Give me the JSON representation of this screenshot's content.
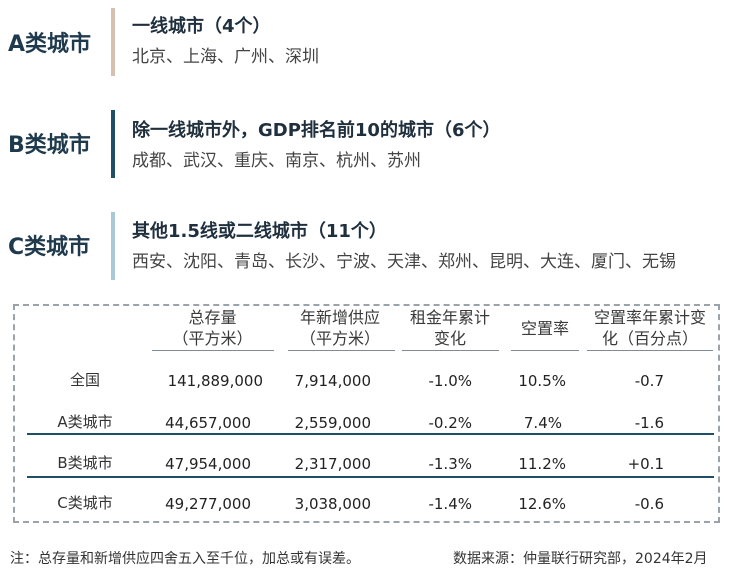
{
  "categories": [
    {
      "label": "A类城市",
      "title": "一线城市（4个）",
      "cities": "北京、上海、广州、深圳",
      "bar_color": "#d8c0b0"
    },
    {
      "label": "B类城市",
      "title": "除一线城市外，GDP排名前10的城市（6个）",
      "cities": "成都、武汉、重庆、南京、杭州、苏州",
      "bar_color": "#1f4e67"
    },
    {
      "label": "C类城市",
      "title": "其他1.5线或二线城市（11个）",
      "cities": "西安、沈阳、青岛、长沙、宁波、天津、郑州、昆明、大连、厦门、无锡",
      "bar_color": "#a9c9d6"
    }
  ],
  "table": {
    "headers": {
      "stock": [
        "总存量",
        "（平方米）"
      ],
      "supply": [
        "年新增供应",
        "（平方米）"
      ],
      "rent": [
        "租金年累计",
        "变化"
      ],
      "vacancy": [
        "空置率"
      ],
      "vacancy_change": [
        "空置率年累计变",
        "化（百分点）"
      ]
    },
    "rows": [
      {
        "label": "全国",
        "stock": "141,889,000",
        "supply": "7,914,000",
        "rent": "-1.0%",
        "vacancy": "10.5%",
        "vacancy_change": "-0.7"
      },
      {
        "label": "A类城市",
        "stock": "44,657,000",
        "supply": "2,559,000",
        "rent": "-0.2%",
        "vacancy": "7.4%",
        "vacancy_change": "-1.6"
      },
      {
        "label": "B类城市",
        "stock": "47,954,000",
        "supply": "2,317,000",
        "rent": "-1.3%",
        "vacancy": "11.2%",
        "vacancy_change": "+0.1"
      },
      {
        "label": "C类城市",
        "stock": "49,277,000",
        "supply": "3,038,000",
        "rent": "-1.4%",
        "vacancy": "12.6%",
        "vacancy_change": "-0.6"
      }
    ],
    "rule_color": "#1f4e67"
  },
  "footer": {
    "note": "注：总存量和新增供应四舍五入至千位，加总或有误差。",
    "source": "数据来源：仲量联行研究部，2024年2月"
  }
}
